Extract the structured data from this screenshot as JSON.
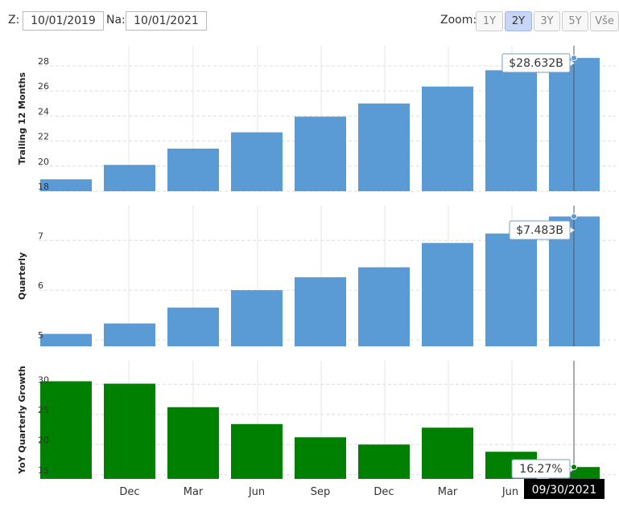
{
  "controls": {
    "from_label": "Z:",
    "from_value": "10/01/2019",
    "to_label": "Na:",
    "to_value": "10/01/2021",
    "zoom_label": "Zoom:",
    "zoom_options": [
      "1Y",
      "2Y",
      "3Y",
      "5Y",
      "Vše"
    ],
    "zoom_selected": "2Y"
  },
  "colors": {
    "blue": "#5b9bd5",
    "green": "#008000",
    "grid": "#e6e6e6"
  },
  "chart_data": [
    {
      "type": "bar",
      "ylabel": "Trailing 12 Months",
      "yticks": [
        18,
        20,
        22,
        24,
        26,
        28
      ],
      "ylim": [
        18,
        29.6
      ],
      "values": [
        18.95,
        20.1,
        21.4,
        22.7,
        23.95,
        25.0,
        26.35,
        27.65,
        28.632
      ],
      "tooltip": "$28.632B"
    },
    {
      "type": "bar",
      "ylabel": "Quarterly",
      "yticks": [
        5,
        6,
        7
      ],
      "ylim": [
        4.87,
        7.7
      ],
      "values": [
        5.12,
        5.33,
        5.65,
        6.0,
        6.26,
        6.46,
        6.95,
        7.14,
        7.483
      ],
      "tooltip": "$7.483B"
    },
    {
      "type": "bar",
      "ylabel": "YoY Quarterly Growth",
      "yticks": [
        15,
        20,
        25,
        30
      ],
      "ylim": [
        14.3,
        33.9
      ],
      "values": [
        30.5,
        30.1,
        26.2,
        23.4,
        21.2,
        20.0,
        22.8,
        18.8,
        16.27
      ],
      "tooltip": "16.27%"
    }
  ],
  "x_ticks": [
    "Dec",
    "Mar",
    "Jun",
    "Sep",
    "Dec",
    "Mar",
    "Jun"
  ],
  "date_flag": "09/30/2021"
}
